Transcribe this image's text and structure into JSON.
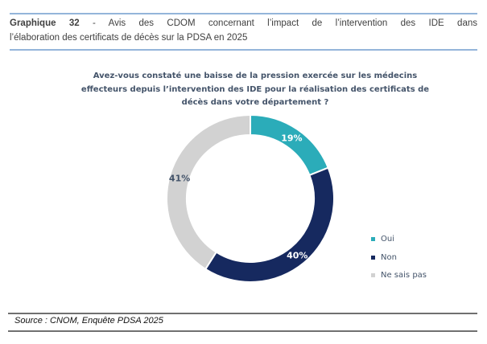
{
  "header": {
    "title_line1_prefix": "Graphique 32",
    "title_line1_rest": " - Avis des CDOM concernant l’impact de l’intervention des IDE dans",
    "title_line2": "l’élaboration des certificats de décès sur la PDSA en 2025",
    "rule_color": "#94B5DA"
  },
  "chart_data": {
    "type": "pie",
    "subtype": "donut",
    "title": "Avez-vous constaté une baisse de la pression exercée sur les médecins effecteurs depuis l’intervention des IDE pour la réalisation des certificats de décès dans votre département ?",
    "title_lines": [
      "Avez-vous constaté une baisse de la pression exercée sur les médecins",
      "effecteurs depuis l’intervention des IDE pour la réalisation des certificats de",
      "décès dans votre département ?"
    ],
    "unit": "%",
    "categories": [
      "Oui",
      "Non",
      "Ne sais pas"
    ],
    "values": [
      19,
      40,
      41
    ],
    "slices": [
      {
        "label": "Oui",
        "value": 19,
        "color": "#2BACB9",
        "label_color": "#FFFFFF"
      },
      {
        "label": "Non",
        "value": 40,
        "color": "#16295F",
        "label_color": "#FFFFFF"
      },
      {
        "label": "Ne sais pas",
        "value": 41,
        "color": "#D2D2D2",
        "label_color": "#44546A"
      }
    ],
    "start_angle_deg": 0,
    "direction": "clockwise",
    "inner_radius_ratio": 0.76,
    "slice_border_color": "#FFFFFF",
    "legend_position": "right",
    "data_labels": [
      "19%",
      "40%",
      "41%"
    ]
  },
  "footer": {
    "source": "Source : CNOM, Enquête PDSA 2025",
    "rule_color": "#707070"
  }
}
